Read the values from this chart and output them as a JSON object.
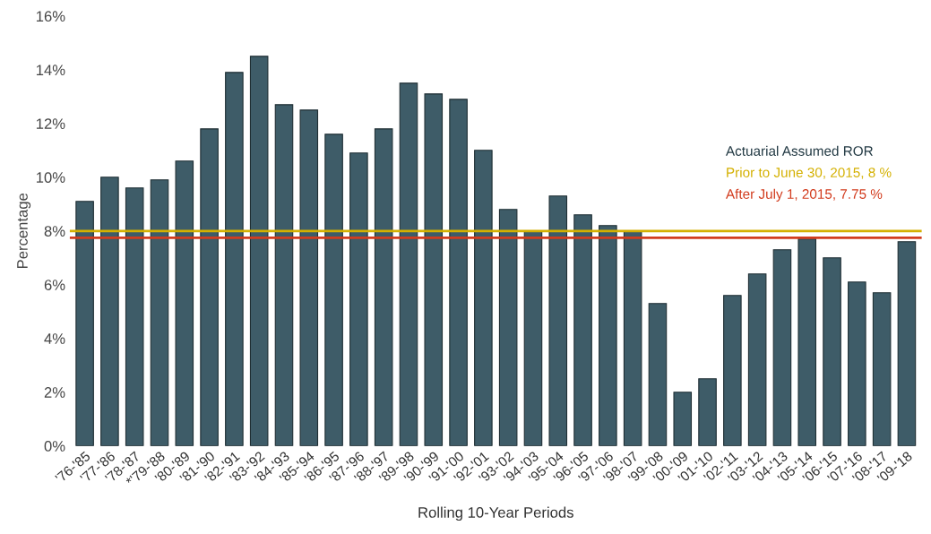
{
  "chart_data": {
    "type": "bar",
    "xlabel": "Rolling 10-Year Periods",
    "ylabel": "Percentage",
    "categories": [
      "'76-'85",
      "'77-'86",
      "'78-'87",
      "*'79-'88",
      "'80-'89",
      "'81-'90",
      "'82-'91",
      "'83-'92",
      "'84-'93",
      "'85-'94",
      "'86-'95",
      "'87-'96",
      "'88-'97",
      "'89-'98",
      "'90-'99",
      "'91-'00",
      "'92-'01",
      "'93-'02",
      "'94-'03",
      "'95-'04",
      "'96-'05",
      "'97-'06",
      "'98-'07",
      "'99-'08",
      "'00-'09",
      "'01-'10",
      "'02-'11",
      "'03-'12",
      "'04-'13",
      "'05-'14",
      "'06-'15",
      "'07-'16",
      "'08-'17",
      "'09-'18"
    ],
    "values": [
      9.1,
      10.0,
      9.6,
      9.9,
      10.6,
      11.8,
      13.9,
      14.5,
      12.7,
      12.5,
      11.6,
      10.9,
      11.8,
      13.5,
      13.1,
      12.9,
      11.0,
      8.8,
      8.0,
      9.3,
      8.6,
      8.2,
      8.0,
      5.3,
      2.0,
      2.5,
      5.6,
      6.4,
      7.3,
      7.7,
      7.0,
      6.1,
      5.7,
      7.6
    ],
    "color": "#3e5c68",
    "ylim": [
      0,
      16
    ],
    "yticks": [
      {
        "value": 0,
        "label": "0%"
      },
      {
        "value": 2,
        "label": "2%"
      },
      {
        "value": 4,
        "label": "4%"
      },
      {
        "value": 6,
        "label": "6%"
      },
      {
        "value": 8,
        "label": "8%"
      },
      {
        "value": 10,
        "label": "10%"
      },
      {
        "value": 12,
        "label": "12%"
      },
      {
        "value": 14,
        "label": "14%"
      },
      {
        "value": 16,
        "label": "16%"
      }
    ],
    "ref_lines": [
      {
        "axis": "y",
        "value": 8,
        "label": "Prior to June 30, 2015, 8 %",
        "color": "#d4b000"
      },
      {
        "axis": "y",
        "value": 7.75,
        "label": "After July 1, 2015, 7.75 %",
        "color": "#d23c1e"
      }
    ],
    "annotations": [
      "Actuarial Assumed ROR"
    ],
    "grid": false
  }
}
